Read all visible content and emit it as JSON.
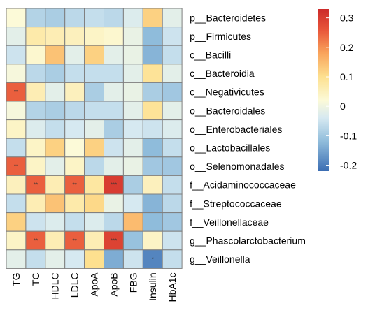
{
  "chart_data": {
    "type": "heatmap",
    "rows": [
      "p__Bacteroidetes",
      "p__Firmicutes",
      "c__Bacilli",
      "c__Bacteroidia",
      "c__Negativicutes",
      "o__Bacteroidales",
      "o__Enterobacteriales",
      "o__Lactobacillales",
      "o__Selenomonadales",
      "f__Acidaminococcaceae",
      "f__Streptococcaceae",
      "f__Veillonellaceae",
      "g__Phascolarctobacterium",
      "g__Veillonella"
    ],
    "columns": [
      "TG",
      "TC",
      "HDLC",
      "LDLC",
      "ApoA",
      "ApoB",
      "FBG",
      "Insulin",
      "HbA1c"
    ],
    "values": [
      [
        0.02,
        -0.08,
        -0.09,
        -0.07,
        -0.06,
        -0.07,
        -0.03,
        0.12,
        -0.02
      ],
      [
        -0.02,
        0.07,
        0.06,
        0.05,
        0.04,
        0.03,
        -0.01,
        -0.12,
        -0.05
      ],
      [
        -0.05,
        0.03,
        0.14,
        -0.02,
        0.12,
        -0.02,
        -0.01,
        -0.13,
        -0.06
      ],
      [
        0.01,
        -0.07,
        -0.09,
        -0.06,
        -0.06,
        -0.06,
        -0.02,
        0.09,
        -0.02
      ],
      [
        0.25,
        0.06,
        -0.02,
        0.05,
        -0.09,
        -0.02,
        -0.01,
        -0.09,
        -0.1
      ],
      [
        0.01,
        -0.08,
        -0.09,
        -0.07,
        -0.06,
        -0.06,
        -0.02,
        0.09,
        -0.02
      ],
      [
        0.04,
        -0.03,
        -0.06,
        -0.04,
        -0.02,
        -0.09,
        -0.04,
        -0.05,
        -0.03
      ],
      [
        -0.06,
        0.04,
        0.12,
        0.02,
        0.12,
        -0.05,
        -0.02,
        -0.12,
        -0.06
      ],
      [
        0.25,
        0.04,
        -0.02,
        0.04,
        -0.07,
        -0.02,
        -0.01,
        -0.1,
        -0.1
      ],
      [
        0.05,
        0.25,
        0.06,
        0.25,
        0.08,
        0.3,
        -0.09,
        0.05,
        -0.06
      ],
      [
        -0.06,
        0.06,
        0.14,
        0.07,
        0.11,
        -0.01,
        -0.04,
        -0.13,
        -0.07
      ],
      [
        0.12,
        -0.05,
        -0.03,
        -0.06,
        -0.03,
        -0.07,
        0.15,
        -0.12,
        -0.1
      ],
      [
        0.04,
        0.25,
        0.06,
        0.25,
        0.06,
        0.29,
        -0.11,
        0.04,
        -0.05
      ],
      [
        -0.02,
        -0.06,
        -0.02,
        -0.04,
        0.1,
        -0.14,
        -0.05,
        -0.19,
        -0.06
      ]
    ],
    "significance": [
      [
        "",
        "",
        "",
        "",
        "",
        "",
        "",
        "",
        ""
      ],
      [
        "",
        "",
        "",
        "",
        "",
        "",
        "",
        "",
        ""
      ],
      [
        "",
        "",
        "",
        "",
        "",
        "",
        "",
        "",
        ""
      ],
      [
        "",
        "",
        "",
        "",
        "",
        "",
        "",
        "",
        ""
      ],
      [
        "**",
        "",
        "",
        "",
        "",
        "",
        "",
        "",
        ""
      ],
      [
        "",
        "",
        "",
        "",
        "",
        "",
        "",
        "",
        ""
      ],
      [
        "",
        "",
        "",
        "",
        "",
        "",
        "",
        "",
        ""
      ],
      [
        "",
        "",
        "",
        "",
        "",
        "",
        "",
        "",
        ""
      ],
      [
        "**",
        "",
        "",
        "",
        "",
        "",
        "",
        "",
        ""
      ],
      [
        "",
        "**",
        "",
        "**",
        "",
        "***",
        "",
        "",
        ""
      ],
      [
        "",
        "",
        "",
        "",
        "",
        "",
        "",
        "",
        ""
      ],
      [
        "",
        "",
        "",
        "",
        "",
        "",
        "",
        "",
        ""
      ],
      [
        "",
        "**",
        "",
        "**",
        "",
        "***",
        "",
        "",
        ""
      ],
      [
        "",
        "",
        "",
        "",
        "",
        "",
        "",
        "*",
        ""
      ]
    ],
    "color_scale": {
      "min": -0.22,
      "max": 0.33,
      "ticks": [
        "0.3",
        "0.2",
        "0.1",
        "0",
        "-0.1",
        "-0.2"
      ],
      "tick_values": [
        0.3,
        0.2,
        0.1,
        0.0,
        -0.1,
        -0.2
      ],
      "stops": [
        {
          "value": -0.22,
          "color": "#3b6db3"
        },
        {
          "value": -0.12,
          "color": "#8fbcdb"
        },
        {
          "value": -0.04,
          "color": "#d6e9f1"
        },
        {
          "value": 0.02,
          "color": "#fcfad8"
        },
        {
          "value": 0.1,
          "color": "#fde08f"
        },
        {
          "value": 0.18,
          "color": "#f9a45c"
        },
        {
          "value": 0.26,
          "color": "#e8553a"
        },
        {
          "value": 0.33,
          "color": "#cc2a2a"
        }
      ]
    },
    "legend_position": "top-right",
    "grid_color": "#7f7f7f"
  }
}
